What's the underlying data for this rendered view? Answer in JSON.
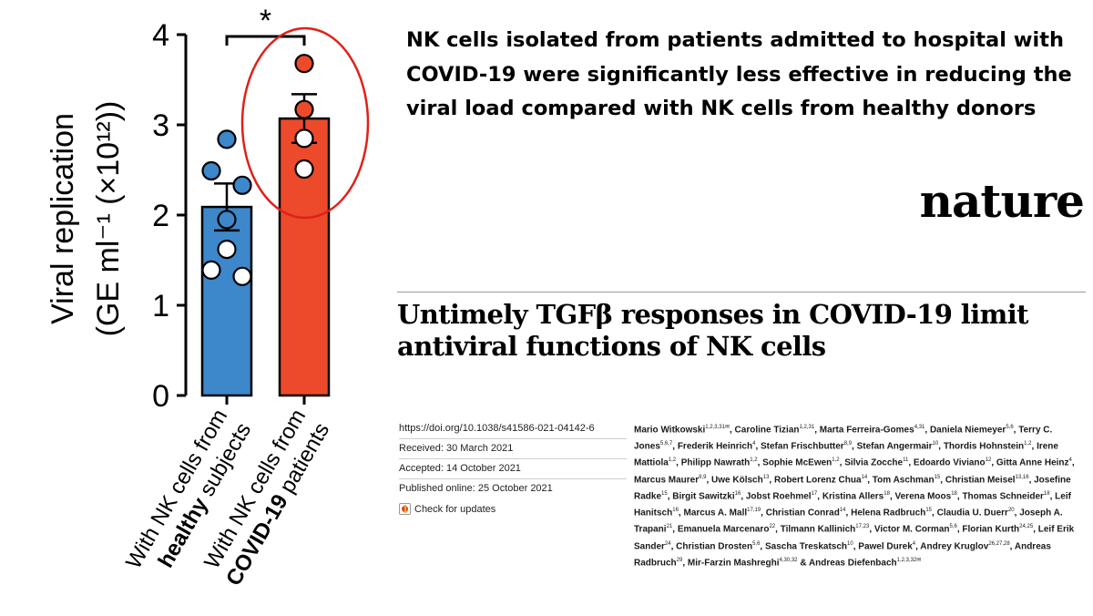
{
  "chart_data": {
    "type": "bar",
    "ylabel_line1": "Viral replication",
    "ylabel_line2": "(GE ml⁻¹ (×10¹²))",
    "ylim": [
      0,
      4
    ],
    "yticks": [
      "0",
      "1",
      "2",
      "3",
      "4"
    ],
    "significance": "*",
    "categories": [
      {
        "line1": "With NK cells from",
        "emph": "healthy",
        "rest": " subjects"
      },
      {
        "line1": "With NK cells from",
        "emph": "COVID-19",
        "rest": " patients"
      }
    ],
    "values": [
      2.09,
      3.07
    ],
    "errors": [
      0.26,
      0.27
    ],
    "points": [
      [
        2.84,
        2.49,
        2.33,
        1.95,
        1.62,
        1.39,
        1.32
      ],
      [
        3.68,
        3.17,
        2.85,
        2.51
      ]
    ],
    "point_style": [
      "filled",
      "filled",
      "filled",
      "filled",
      "open",
      "open",
      "open"
    ],
    "point_style_2": [
      "filled",
      "filled",
      "open",
      "open"
    ],
    "colors": {
      "bar1": "#3d87cb",
      "bar2": "#ec4a2b",
      "point1": "#3d87cb",
      "point2": "#ec4a2b",
      "highlight": "#e0201a"
    }
  },
  "caption": "NK cells isolated from patients admitted to hospital with COVID-19 were significantly less effective in reducing the viral load compared with NK cells from healthy donors",
  "journal": "nature",
  "article_title": "Untimely TGFβ responses in COVID-19 limit antiviral functions of NK cells",
  "meta": {
    "doi": "https://doi.org/10.1038/s41586-021-04142-6",
    "received": "Received: 30 March 2021",
    "accepted": "Accepted: 14 October 2021",
    "published": "Published online: 25 October 2021",
    "check_updates": "Check for updates"
  },
  "authors": [
    [
      "Mario Witkowski",
      "1,2,3,31✉"
    ],
    [
      "Caroline Tizian",
      "1,2,31"
    ],
    [
      "Marta Ferreira-Gomes",
      "4,31"
    ],
    [
      "Daniela Niemeyer",
      "5,6"
    ],
    [
      "Terry C. Jones",
      "5,6,7"
    ],
    [
      "Frederik Heinrich",
      "4"
    ],
    [
      "Stefan Frischbutter",
      "8,9"
    ],
    [
      "Stefan Angermair",
      "10"
    ],
    [
      "Thordis Hohnstein",
      "1,2"
    ],
    [
      "Irene Mattiola",
      "1,2"
    ],
    [
      "Philipp Nawrath",
      "1,2"
    ],
    [
      "Sophie  McEwen",
      "1,2"
    ],
    [
      "Silvia Zocche",
      "11"
    ],
    [
      "Edoardo Viviano",
      "12"
    ],
    [
      "Gitta Anne Heinz",
      "4"
    ],
    [
      "Marcus Maurer",
      "8,9"
    ],
    [
      "Uwe Kölsch",
      "13"
    ],
    [
      "Robert Lorenz Chua",
      "14"
    ],
    [
      "Tom Aschman",
      "15"
    ],
    [
      "Christian Meisel",
      "13,16"
    ],
    [
      "Josefine Radke",
      "15"
    ],
    [
      "Birgit Sawitzki",
      "16"
    ],
    [
      "Jobst Roehmel",
      "17"
    ],
    [
      "Kristina Allers",
      "18"
    ],
    [
      "Verena Moos",
      "18"
    ],
    [
      "Thomas Schneider",
      "18"
    ],
    [
      "Leif Hanitsch",
      "16"
    ],
    [
      "Marcus A. Mall",
      "17,19"
    ],
    [
      "Christian Conrad",
      "14"
    ],
    [
      "Helena Radbruch",
      "15"
    ],
    [
      "Claudia U. Duerr",
      "20"
    ],
    [
      "Joseph A. Trapani",
      "21"
    ],
    [
      "Emanuela Marcenaro",
      "22"
    ],
    [
      "Tilmann Kallinich",
      "17,23"
    ],
    [
      "Victor M. Corman",
      "5,6"
    ],
    [
      "Florian Kurth",
      "24,25"
    ],
    [
      "Leif Erik Sander",
      "24"
    ],
    [
      "Christian Drosten",
      "5,6"
    ],
    [
      "Sascha Treskatsch",
      "10"
    ],
    [
      "Pawel Durek",
      "4"
    ],
    [
      "Andrey Kruglov",
      "26,27,28"
    ],
    [
      "Andreas Radbruch",
      "29"
    ],
    [
      "Mir-Farzin Mashreghi",
      "4,30,32"
    ],
    [
      "& ",
      ""
    ],
    [
      "Andreas Diefenbach",
      "1,2,3,32✉"
    ]
  ]
}
